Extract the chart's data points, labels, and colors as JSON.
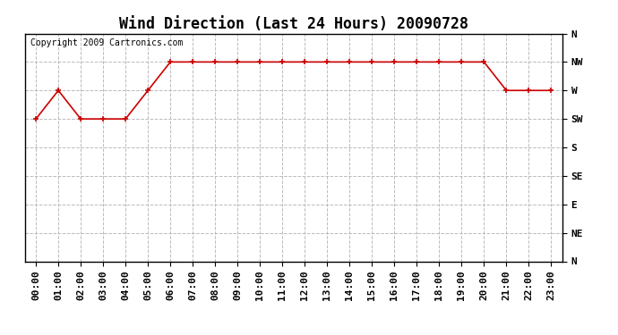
{
  "title": "Wind Direction (Last 24 Hours) 20090728",
  "copyright": "Copyright 2009 Cartronics.com",
  "x_labels": [
    "00:00",
    "01:00",
    "02:00",
    "03:00",
    "04:00",
    "05:00",
    "06:00",
    "07:00",
    "08:00",
    "09:00",
    "10:00",
    "11:00",
    "12:00",
    "13:00",
    "14:00",
    "15:00",
    "16:00",
    "17:00",
    "18:00",
    "19:00",
    "20:00",
    "21:00",
    "22:00",
    "23:00"
  ],
  "y_labels": [
    "N",
    "NW",
    "W",
    "SW",
    "S",
    "SE",
    "E",
    "NE",
    "N"
  ],
  "y_tick_vals": [
    8,
    7,
    6,
    5,
    4,
    3,
    2,
    1,
    0
  ],
  "wind_data": [
    5,
    6,
    5,
    5,
    5,
    6,
    7,
    7,
    7,
    7,
    7,
    7,
    7,
    7,
    7,
    7,
    7,
    7,
    7,
    7,
    7,
    6,
    6,
    6
  ],
  "line_color": "#cc0000",
  "marker": "+",
  "marker_size": 5,
  "background_color": "#ffffff",
  "grid_color": "#bbbbbb",
  "title_fontsize": 12,
  "tick_fontsize": 8,
  "copyright_fontsize": 7
}
